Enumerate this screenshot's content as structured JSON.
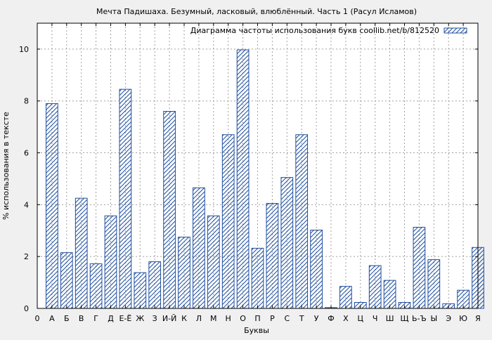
{
  "colors": {
    "background": "#f0f0f0",
    "plot_background": "#ffffff",
    "bar_stroke": "#1f4fa0",
    "grid": "#a0a0a0",
    "axis": "#000000"
  },
  "chart_data": {
    "type": "bar",
    "title": "Мечта Падишаха. Безумный, ласковый, влюблённый. Часть 1 (Расул Исламов)",
    "xlabel": "Буквы",
    "ylabel": "% использования в тексте",
    "legend": {
      "label": "Диаграмма частоты использования букв coollib.net/b/812520",
      "placement": "top-right"
    },
    "ylim": [
      0,
      11
    ],
    "yticks": [
      0,
      2,
      4,
      6,
      8,
      10
    ],
    "grid": true,
    "fill_pattern": "diagonal-hatch",
    "x_tick_labels": [
      "0",
      "А",
      "Б",
      "В",
      "Г",
      "Д",
      "Е-Ё",
      "Ж",
      "З",
      "И-Й",
      "К",
      "Л",
      "М",
      "Н",
      "О",
      "П",
      "Р",
      "С",
      "Т",
      "У",
      "Ф",
      "Х",
      "Ц",
      "Ч",
      "Ш",
      "Щ",
      "Ь-Ъ",
      "Ы",
      "Э",
      "Ю",
      "Я"
    ],
    "categories": [
      "А",
      "Б",
      "В",
      "Г",
      "Д",
      "Е-Ё",
      "Ж",
      "З",
      "И-Й",
      "К",
      "Л",
      "М",
      "Н",
      "О",
      "П",
      "Р",
      "С",
      "Т",
      "У",
      "Ф",
      "Х",
      "Ц",
      "Ч",
      "Ш",
      "Щ",
      "Ь-Ъ",
      "Ы",
      "Э",
      "Ю",
      "Я"
    ],
    "values": [
      7.9,
      2.15,
      4.25,
      1.72,
      3.57,
      8.45,
      1.38,
      1.8,
      7.6,
      2.75,
      4.65,
      3.57,
      6.7,
      9.97,
      2.32,
      4.05,
      5.05,
      6.7,
      3.02,
      0.03,
      0.85,
      0.23,
      1.65,
      1.08,
      0.23,
      3.13,
      1.88,
      0.18,
      0.7,
      2.35
    ]
  }
}
